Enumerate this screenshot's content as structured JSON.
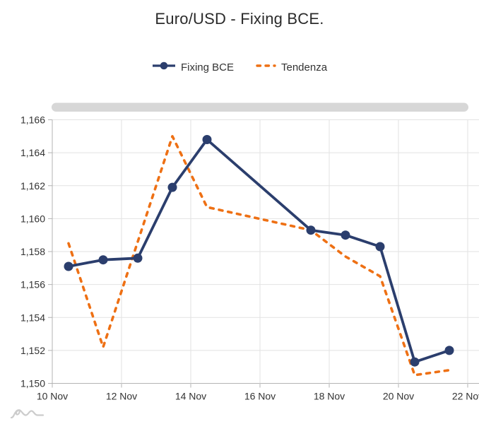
{
  "title": "Euro/USD - Fixing BCE.",
  "legend": {
    "items": [
      {
        "label": "Fixing BCE",
        "series": "fixing_bce",
        "marker": "line-with-bullet"
      },
      {
        "label": "Tendenza",
        "series": "tendenza",
        "marker": "dashed-line"
      }
    ]
  },
  "colors": {
    "fixing_bce": "#2b3e6d",
    "tendenza": "#ee7014",
    "grid": "#e2e2e2",
    "axis": "#b3b3b3",
    "label": "#333333",
    "title": "#2b2b2b",
    "scrollbar": "#d7d7d7",
    "logo": "#cccccc"
  },
  "chart_data": {
    "type": "line",
    "title": "Euro/USD - Fixing BCE.",
    "x_dates": [
      "10 Nov",
      "11 Nov",
      "12 Nov",
      "13 Nov",
      "14 Nov",
      "17 Nov",
      "18 Nov",
      "19 Nov",
      "20 Nov",
      "21 Nov"
    ],
    "x_days_nov": [
      10,
      11,
      12,
      13,
      14,
      17,
      18,
      19,
      20,
      21
    ],
    "x_point_time_offset_days": 0.47,
    "series": [
      {
        "name": "Fixing BCE",
        "style": "solid",
        "marker": "circle",
        "color_key": "fixing_bce",
        "values": [
          1.1571,
          1.1575,
          1.1576,
          1.1619,
          1.1648,
          1.1593,
          1.159,
          1.1583,
          1.1513,
          1.152
        ]
      },
      {
        "name": "Tendenza",
        "style": "dashed",
        "marker": "none",
        "color_key": "tendenza",
        "values": [
          1.1585,
          1.1522,
          1.1586,
          1.165,
          1.1607,
          1.1593,
          1.1577,
          1.1565,
          1.1505,
          1.1508
        ]
      }
    ],
    "ylim": [
      1.15,
      1.166
    ],
    "yticks": [
      1.15,
      1.152,
      1.154,
      1.156,
      1.158,
      1.16,
      1.162,
      1.164,
      1.166
    ],
    "ytick_labels": [
      "1,150",
      "1,152",
      "1,154",
      "1,156",
      "1,158",
      "1,160",
      "1,162",
      "1,164",
      "1,166"
    ],
    "xticks_days_nov": [
      10,
      12,
      14,
      16,
      18,
      20,
      22
    ],
    "xtick_labels": [
      "10 Nov",
      "12 Nov",
      "14 Nov",
      "16 Nov",
      "18 Nov",
      "20 Nov",
      "22 Nov"
    ],
    "grid": true,
    "legend_position": "top",
    "scrollbar_position": "top"
  }
}
